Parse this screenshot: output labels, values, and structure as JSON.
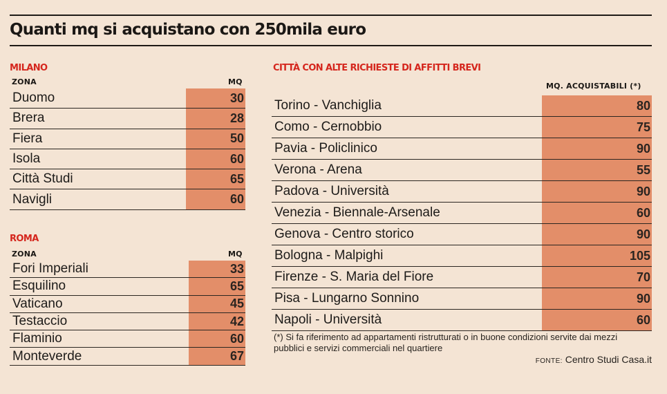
{
  "title": "Quanti mq si acquistano con 250mila euro",
  "colors": {
    "accent": "#d5261d",
    "bar": "#e38e69",
    "background": "#f4e4d4"
  },
  "milano": {
    "section_title": "MILANO",
    "col_zone": "ZONA",
    "col_mq": "MQ",
    "rows": [
      {
        "zone": "Duomo",
        "mq": "30"
      },
      {
        "zone": "Brera",
        "mq": "28"
      },
      {
        "zone": "Fiera",
        "mq": "50"
      },
      {
        "zone": "Isola",
        "mq": "60"
      },
      {
        "zone": "Città Studi",
        "mq": "65"
      },
      {
        "zone": "Navigli",
        "mq": "60"
      }
    ]
  },
  "roma": {
    "section_title": "ROMA",
    "col_zone": "ZONA",
    "col_mq": "MQ",
    "rows": [
      {
        "zone": "Fori Imperiali",
        "mq": "33"
      },
      {
        "zone": "Esquilino",
        "mq": "65"
      },
      {
        "zone": "Vaticano",
        "mq": "45"
      },
      {
        "zone": "Testaccio",
        "mq": "42"
      },
      {
        "zone": "Flaminio",
        "mq": "60"
      },
      {
        "zone": "Monteverde",
        "mq": "67"
      }
    ]
  },
  "affitti": {
    "section_title": "CITTÀ CON ALTE RICHIESTE DI AFFITTI BREVI",
    "col_mq": "MQ. ACQUISTABILI (*)",
    "rows": [
      {
        "zone": "Torino - Vanchiglia",
        "mq": "80"
      },
      {
        "zone": "Como - Cernobbio",
        "mq": "75"
      },
      {
        "zone": "Pavia - Policlinico",
        "mq": "90"
      },
      {
        "zone": "Verona - Arena",
        "mq": "55"
      },
      {
        "zone": "Padova - Università",
        "mq": "90"
      },
      {
        "zone": "Venezia - Biennale-Arsenale",
        "mq": "60"
      },
      {
        "zone": "Genova - Centro storico",
        "mq": "90"
      },
      {
        "zone": "Bologna - Malpighi",
        "mq": "105"
      },
      {
        "zone": "Firenze - S. Maria del Fiore",
        "mq": "70"
      },
      {
        "zone": "Pisa - Lungarno Sonnino",
        "mq": "90"
      },
      {
        "zone": "Napoli - Università",
        "mq": "60"
      }
    ],
    "footnote": "(*) Si fa riferimento ad appartamenti ristrutturati o in buone condizioni servite dai mezzi pubblici e servizi commerciali nel quartiere",
    "source_key": "FONTE:",
    "source_value": " Centro Studi Casa.it"
  }
}
